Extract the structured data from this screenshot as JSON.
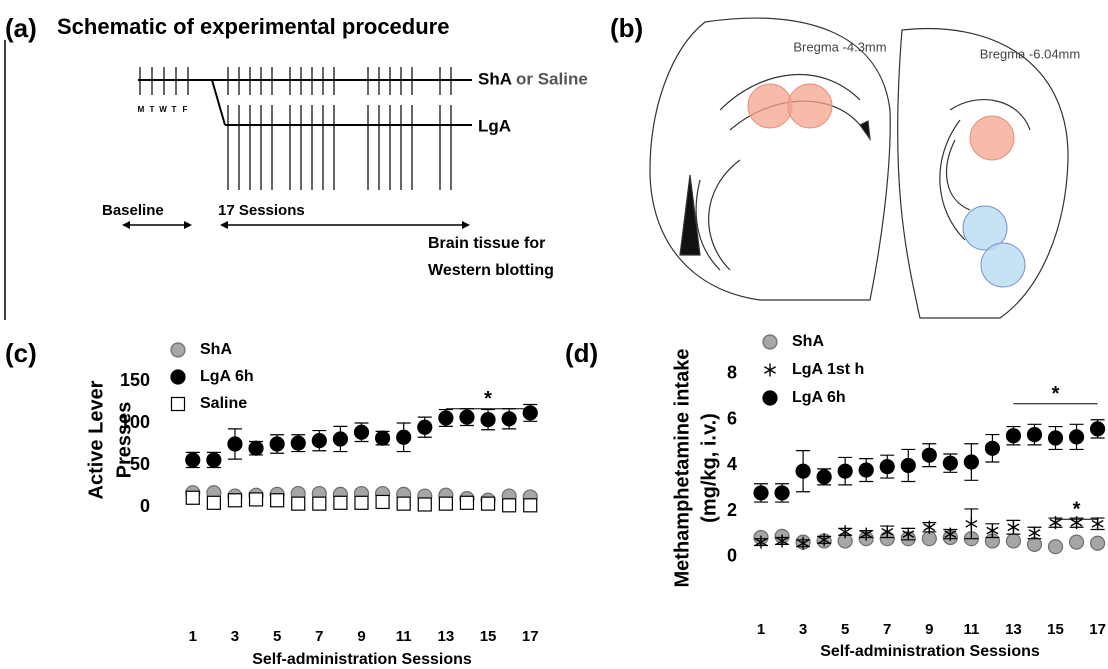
{
  "schematic": {
    "panel_label": "(a)",
    "title": "Schematic of experimental procedure",
    "rows": [
      "ShA",
      "LgA"
    ],
    "row_note": "or Saline",
    "days": [
      "M",
      "T",
      "W",
      "T",
      "F"
    ],
    "phases": [
      "Baseline",
      "17 Sessions"
    ],
    "endpoint": [
      "Brain tissue for",
      "Western blotting"
    ]
  },
  "anatomy": {
    "panel_label": "(b)",
    "sections": [
      "Bregma -4.3mm",
      "Bregma -6.04mm"
    ]
  },
  "chart_data": [
    {
      "type": "scatter",
      "panel_label": "(c)",
      "y_label": [
        "Active Lever",
        "Presses"
      ],
      "x_label": "Self-administration Sessions",
      "x": [
        1,
        2,
        3,
        4,
        5,
        6,
        7,
        8,
        9,
        10,
        11,
        12,
        13,
        14,
        15,
        16,
        17
      ],
      "xlim": [
        0.3,
        17.7
      ],
      "xticks": [
        1,
        3,
        5,
        7,
        9,
        11,
        13,
        15,
        17
      ],
      "ylim": [
        -10,
        155
      ],
      "yticks": [
        0,
        50,
        100,
        150
      ],
      "series": [
        {
          "name": "ShA",
          "marker": "circle",
          "color": "#a6a6a6",
          "edgecolor": "#6e6e6e",
          "values": [
            17,
            17,
            13,
            14,
            15,
            16,
            16,
            15,
            16,
            16,
            15,
            13,
            14,
            10,
            8,
            13,
            12
          ]
        },
        {
          "name": "LgA 6h",
          "marker": "circle",
          "color": "#000000",
          "edgecolor": "#000000",
          "values": [
            56,
            56,
            75,
            70,
            75,
            76,
            79,
            81,
            89,
            82,
            83,
            95,
            106,
            107,
            104,
            105,
            112
          ],
          "errors": [
            9,
            9,
            18,
            8,
            11,
            10,
            12,
            15,
            11,
            8,
            17,
            12,
            10,
            10,
            12,
            12,
            10
          ]
        },
        {
          "name": "Saline",
          "marker": "square",
          "color": "#ffffff",
          "edgecolor": "#000000",
          "values": [
            11,
            5,
            8,
            9,
            8,
            4,
            4,
            5,
            5,
            6,
            4,
            3,
            4,
            5,
            4,
            2,
            2
          ]
        }
      ],
      "annotations": [
        {
          "text": "*",
          "x": [
            13,
            17
          ],
          "y": 117
        }
      ]
    },
    {
      "type": "scatter",
      "panel_label": "(d)",
      "y_label": [
        "Methamphetamine intake",
        "(mg/kg, i.v.)"
      ],
      "x_label": "Self-administration Sessions",
      "x": [
        1,
        2,
        3,
        4,
        5,
        6,
        7,
        8,
        9,
        10,
        11,
        12,
        13,
        14,
        15,
        16,
        17
      ],
      "xlim": [
        0.4,
        17.4
      ],
      "xticks": [
        1,
        3,
        5,
        7,
        9,
        11,
        13,
        15,
        17
      ],
      "ylim": [
        -0.5,
        8.3
      ],
      "yticks": [
        0,
        2,
        4,
        6,
        8
      ],
      "series": [
        {
          "name": "ShA",
          "marker": "circle",
          "color": "#a6a6a6",
          "edgecolor": "#6e6e6e",
          "values": [
            0.85,
            0.9,
            0.65,
            0.7,
            0.7,
            0.8,
            0.8,
            0.8,
            0.8,
            0.85,
            0.8,
            0.7,
            0.7,
            0.55,
            0.45,
            0.65,
            0.6
          ]
        },
        {
          "name": "LgA 1st h",
          "marker": "asterisk",
          "color": "#000000",
          "edgecolor": "#000000",
          "values": [
            0.65,
            0.7,
            0.6,
            0.75,
            1.1,
            1.0,
            1.1,
            1.0,
            1.3,
            1.0,
            1.45,
            1.15,
            1.3,
            1.05,
            1.5,
            1.5,
            1.45
          ],
          "errors": [
            0.15,
            0.15,
            0.15,
            0.15,
            0.15,
            0.15,
            0.25,
            0.25,
            0.2,
            0.2,
            0.65,
            0.3,
            0.3,
            0.25,
            0.2,
            0.2,
            0.25
          ]
        },
        {
          "name": "LgA 6h",
          "marker": "circle",
          "color": "#000000",
          "edgecolor": "#000000",
          "values": [
            2.8,
            2.8,
            3.75,
            3.5,
            3.75,
            3.8,
            3.95,
            4.0,
            4.45,
            4.1,
            4.15,
            4.75,
            5.3,
            5.35,
            5.2,
            5.25,
            5.6
          ],
          "errors": [
            0.4,
            0.4,
            0.9,
            0.35,
            0.6,
            0.5,
            0.5,
            0.7,
            0.5,
            0.4,
            0.8,
            0.6,
            0.4,
            0.45,
            0.5,
            0.55,
            0.4
          ]
        }
      ],
      "annotations": [
        {
          "text": "*",
          "x": [
            13,
            17
          ],
          "y": 6.7
        },
        {
          "text": "*",
          "x": [
            15,
            17
          ],
          "y": 1.65
        }
      ]
    }
  ]
}
